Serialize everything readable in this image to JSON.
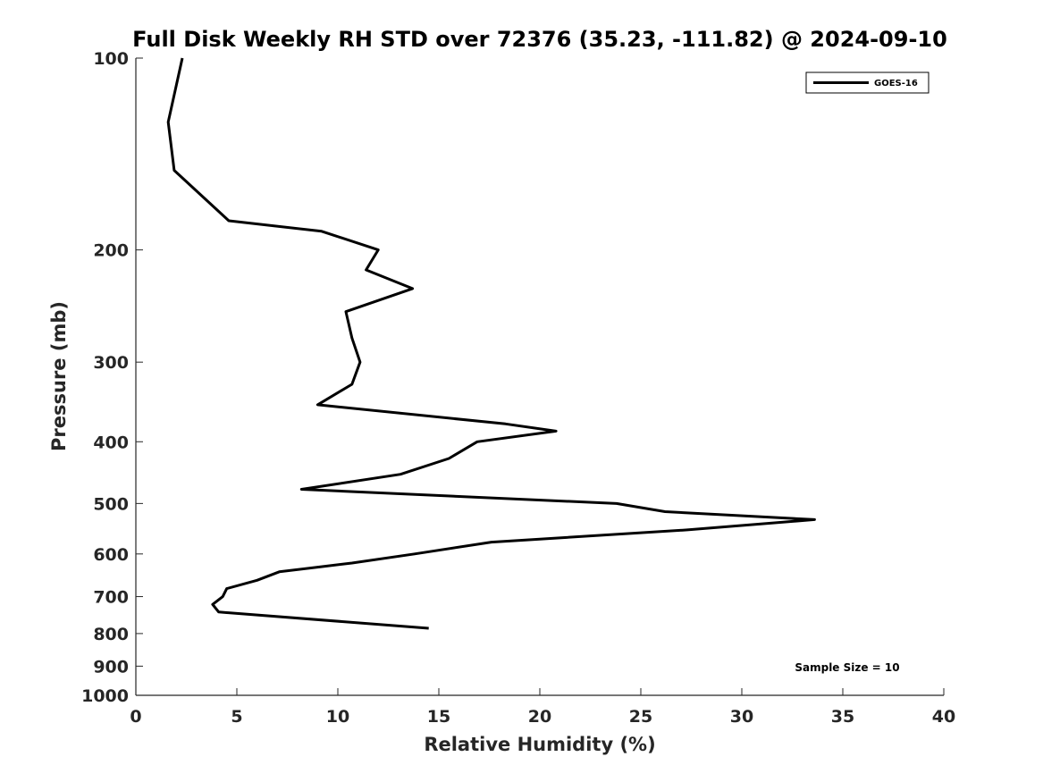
{
  "chart_data": {
    "type": "line",
    "title": "Full Disk Weekly RH STD over 72376 (35.23, -111.82) @ 2024-09-10",
    "xlabel": "Relative Humidity (%)",
    "ylabel": "Pressure (mb)",
    "xlim": [
      0,
      40
    ],
    "ylim": [
      100,
      1000
    ],
    "y_scale": "log",
    "y_reversed": true,
    "x_ticks": [
      0,
      5,
      10,
      15,
      20,
      25,
      30,
      35,
      40
    ],
    "y_ticks": [
      100,
      200,
      300,
      400,
      500,
      600,
      700,
      800,
      900,
      1000
    ],
    "grid": false,
    "legend_position": "top-right",
    "annotation": "Sample Size = 10",
    "series": [
      {
        "name": "GOES-16",
        "color": "#000000",
        "x": [
          2.3,
          1.6,
          1.9,
          4.6,
          9.2,
          12.0,
          11.4,
          13.7,
          10.4,
          10.7,
          11.1,
          10.7,
          9.0,
          18.3,
          20.8,
          16.9,
          15.5,
          13.1,
          8.2,
          23.8,
          26.2,
          33.6,
          27.3,
          17.6,
          13.8,
          10.7,
          7.1,
          6.0,
          4.5,
          4.3,
          3.8,
          4.1,
          14.5
        ],
        "y": [
          100,
          126,
          150,
          180,
          187,
          200,
          215,
          230,
          250,
          275,
          300,
          325,
          350,
          375,
          385,
          400,
          425,
          450,
          475,
          500,
          515,
          530,
          550,
          575,
          600,
          620,
          640,
          660,
          680,
          700,
          720,
          740,
          785
        ]
      }
    ]
  }
}
